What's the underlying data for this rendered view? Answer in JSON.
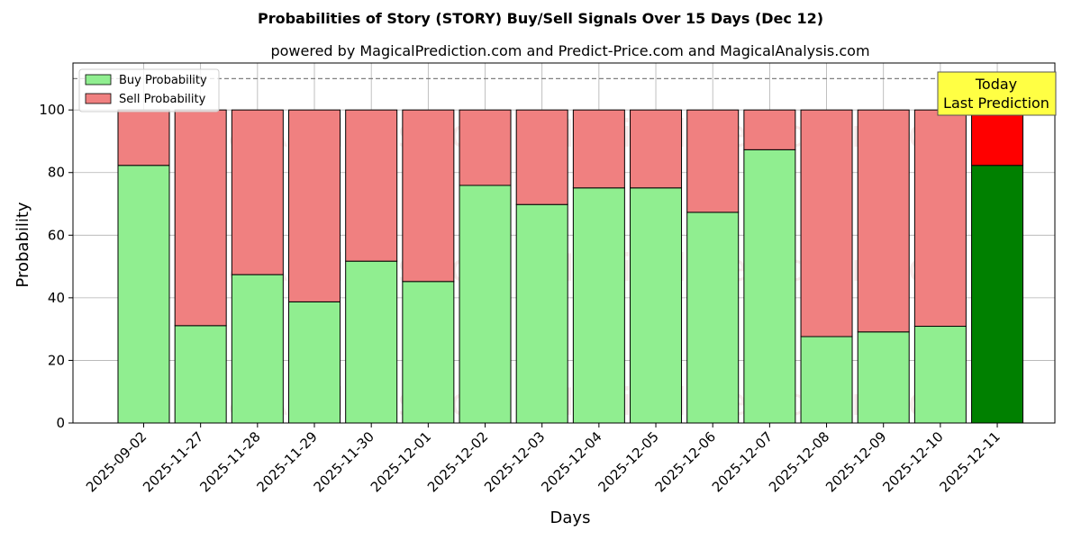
{
  "title": "Probabilities of Story (STORY) Buy/Sell Signals Over 15 Days (Dec 12)",
  "subtitle": "powered by MagicalPrediction.com and Predict-Price.com and MagicalAnalysis.com",
  "watermarks": [
    "MagicalAnalysis.com",
    "MagicalPrediction.com"
  ],
  "annotation": {
    "line1": "Today",
    "line2": "Last Prediction"
  },
  "colors": {
    "buy": "#90ee90",
    "sell": "#f08080",
    "buy_today": "#008000",
    "sell_today": "#ff0000",
    "annotation_bg": "#ffff44",
    "reference_line": "#808080"
  },
  "chart_data": {
    "type": "bar",
    "stacked": true,
    "xlabel": "Days",
    "ylabel": "Probability",
    "ylim": [
      0,
      115
    ],
    "yticks": [
      0,
      20,
      40,
      60,
      80,
      100
    ],
    "reference_line": 110,
    "grid": true,
    "legend_position": "top-left",
    "categories": [
      "2025-09-02",
      "2025-11-27",
      "2025-11-28",
      "2025-11-29",
      "2025-11-30",
      "2025-12-01",
      "2025-12-02",
      "2025-12-03",
      "2025-12-04",
      "2025-12-05",
      "2025-12-06",
      "2025-12-07",
      "2025-12-08",
      "2025-12-09",
      "2025-12-10",
      "2025-12-11"
    ],
    "series": [
      {
        "name": "Buy Probability",
        "values": [
          82.3,
          31.1,
          47.4,
          38.7,
          51.7,
          45.2,
          75.9,
          69.8,
          75.1,
          75.1,
          67.3,
          87.3,
          27.6,
          29.1,
          30.9,
          82.3
        ]
      },
      {
        "name": "Sell Probability",
        "values": [
          17.7,
          68.9,
          52.6,
          61.3,
          48.3,
          54.8,
          24.1,
          30.2,
          24.9,
          24.9,
          32.7,
          12.7,
          72.4,
          70.9,
          69.1,
          17.7
        ]
      }
    ],
    "highlight_last": true
  }
}
